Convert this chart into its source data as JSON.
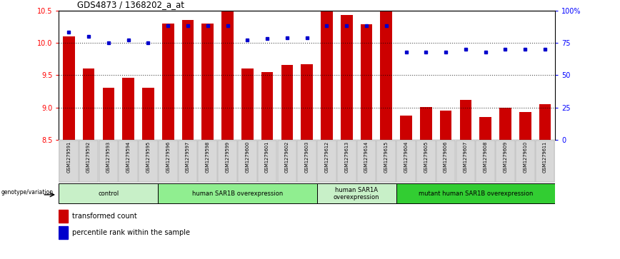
{
  "title": "GDS4873 / 1368202_a_at",
  "samples": [
    "GSM1279591",
    "GSM1279592",
    "GSM1279593",
    "GSM1279594",
    "GSM1279595",
    "GSM1279596",
    "GSM1279597",
    "GSM1279598",
    "GSM1279599",
    "GSM1279600",
    "GSM1279601",
    "GSM1279602",
    "GSM1279603",
    "GSM1279612",
    "GSM1279613",
    "GSM1279614",
    "GSM1279615",
    "GSM1279604",
    "GSM1279605",
    "GSM1279606",
    "GSM1279607",
    "GSM1279608",
    "GSM1279609",
    "GSM1279610",
    "GSM1279611"
  ],
  "red_values": [
    10.1,
    9.6,
    9.3,
    9.46,
    9.3,
    10.3,
    10.35,
    10.3,
    10.5,
    9.6,
    9.55,
    9.66,
    9.67,
    10.48,
    10.43,
    10.28,
    10.48,
    8.88,
    9.01,
    8.95,
    9.12,
    8.85,
    9.0,
    8.93,
    9.05
  ],
  "blue_values": [
    83,
    80,
    75,
    77,
    75,
    88,
    88,
    88,
    88,
    77,
    78,
    79,
    79,
    88,
    88,
    88,
    88,
    68,
    68,
    68,
    70,
    68,
    70,
    70,
    70
  ],
  "ylim_left": [
    8.5,
    10.5
  ],
  "ylim_right": [
    0,
    100
  ],
  "yticks_left": [
    8.5,
    9.0,
    9.5,
    10.0,
    10.5
  ],
  "yticks_right": [
    0,
    25,
    50,
    75,
    100
  ],
  "ytick_labels_right": [
    "0",
    "25",
    "50",
    "75",
    "100%"
  ],
  "groups": [
    {
      "label": "control",
      "start": 0,
      "end": 5,
      "color": "#c8f0c8"
    },
    {
      "label": "human SAR1B overexpression",
      "start": 5,
      "end": 13,
      "color": "#90ee90"
    },
    {
      "label": "human SAR1A\noverexpression",
      "start": 13,
      "end": 17,
      "color": "#c8f0c8"
    },
    {
      "label": "mutant human SAR1B overexpression",
      "start": 17,
      "end": 25,
      "color": "#32cd32"
    }
  ],
  "bar_color": "#cc0000",
  "dot_color": "#0000cc",
  "grid_color": "black",
  "grid_alpha": 0.7,
  "legend_label_red": "transformed count",
  "legend_label_blue": "percentile rank within the sample",
  "genotype_label": "genotype/variation",
  "bar_bottom": 8.5,
  "bar_width": 0.6
}
